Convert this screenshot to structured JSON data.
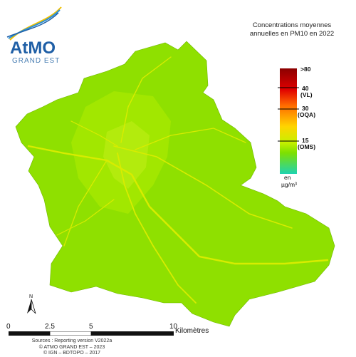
{
  "logo": {
    "name": "AtMO",
    "subtitle": "GRAND EST"
  },
  "title": {
    "line1": "Concentrations moyennes",
    "line2": "annuelles en PM10 en 2022"
  },
  "legend": {
    "labels": {
      "max": ">80",
      "vl_value": "40",
      "vl_tag": "(VL)",
      "oqa_value": "30",
      "oqa_tag": "(OQA)",
      "oms_value": "15",
      "oms_tag": "(OMS)"
    },
    "unit_line1": "en",
    "unit_line2": "µg/m³",
    "colors": [
      "#8b0000",
      "#ff0000",
      "#ff8800",
      "#ffff00",
      "#7ee000",
      "#1fd3b0"
    ]
  },
  "map": {
    "fill_color": "#8fe000",
    "road_color": "#d8ec00"
  },
  "north": {
    "label": "N"
  },
  "scale": {
    "ticks": [
      "0",
      "2.5",
      "5",
      "10"
    ],
    "unit": "Kilomètres"
  },
  "sources": {
    "line1": "Sources : Reporting version V2022a",
    "line2": "© ATMO GRAND EST – 2023",
    "line3": "© IGN – BDTOPO – 2017"
  }
}
